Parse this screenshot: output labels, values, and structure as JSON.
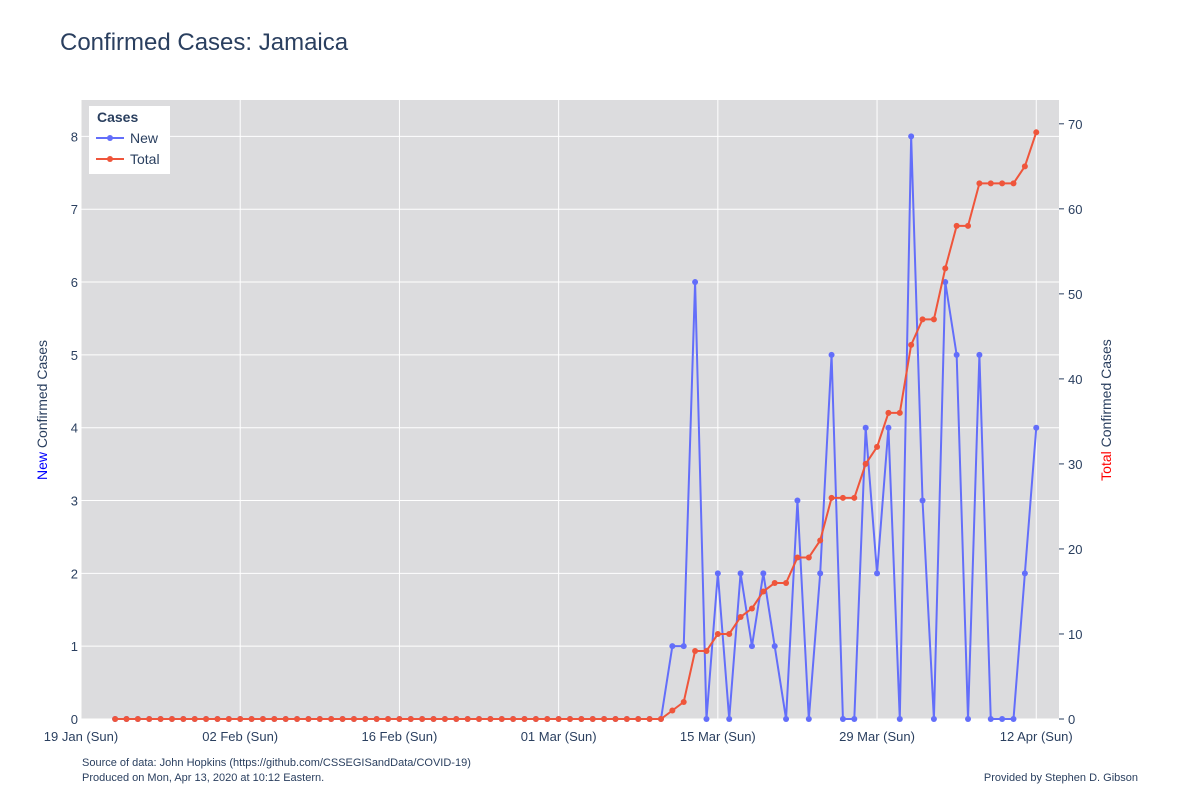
{
  "chart_data": {
    "type": "line",
    "title": "Confirmed Cases: Jamaica",
    "x_start_date": "2020-01-22",
    "x_end_date": "2020-04-12",
    "x_range": [
      "2020-01-19",
      "2020-04-14"
    ],
    "x_ticks": [
      {
        "date": "2020-01-19",
        "label": "19 Jan (Sun)"
      },
      {
        "date": "2020-02-02",
        "label": "02 Feb (Sun)"
      },
      {
        "date": "2020-02-16",
        "label": "16 Feb (Sun)"
      },
      {
        "date": "2020-03-01",
        "label": "01 Mar (Sun)"
      },
      {
        "date": "2020-03-15",
        "label": "15 Mar (Sun)"
      },
      {
        "date": "2020-03-29",
        "label": "29 Mar (Sun)"
      },
      {
        "date": "2020-04-12",
        "label": "12 Apr (Sun)"
      }
    ],
    "y_left": {
      "label_prefix": "New",
      "label_rest": " Confirmed Cases",
      "range": [
        0,
        8.5
      ],
      "ticks": [
        0,
        1,
        2,
        3,
        4,
        5,
        6,
        7,
        8
      ],
      "prefix_color": "#0000ff"
    },
    "y_right": {
      "label_prefix": "Total",
      "label_rest": " Confirmed Cases",
      "range": [
        0,
        72.8
      ],
      "ticks": [
        0,
        10,
        20,
        30,
        40,
        50,
        60,
        70
      ],
      "prefix_color": "#ff0000"
    },
    "legend": {
      "title": "Cases",
      "position": "top-left"
    },
    "grid": true,
    "series": [
      {
        "name": "New",
        "axis": "left",
        "color": "#636efa",
        "values": [
          0,
          0,
          0,
          0,
          0,
          0,
          0,
          0,
          0,
          0,
          0,
          0,
          0,
          0,
          0,
          0,
          0,
          0,
          0,
          0,
          0,
          0,
          0,
          0,
          0,
          0,
          0,
          0,
          0,
          0,
          0,
          0,
          0,
          0,
          0,
          0,
          0,
          0,
          0,
          0,
          0,
          0,
          0,
          0,
          0,
          0,
          0,
          0,
          0,
          1,
          1,
          6,
          0,
          2,
          0,
          2,
          1,
          2,
          1,
          0,
          3,
          0,
          2,
          5,
          0,
          0,
          4,
          2,
          4,
          0,
          8,
          3,
          0,
          6,
          5,
          0,
          5,
          0,
          0,
          0,
          2,
          4
        ]
      },
      {
        "name": "Total",
        "axis": "right",
        "color": "#ef553b",
        "values": [
          0,
          0,
          0,
          0,
          0,
          0,
          0,
          0,
          0,
          0,
          0,
          0,
          0,
          0,
          0,
          0,
          0,
          0,
          0,
          0,
          0,
          0,
          0,
          0,
          0,
          0,
          0,
          0,
          0,
          0,
          0,
          0,
          0,
          0,
          0,
          0,
          0,
          0,
          0,
          0,
          0,
          0,
          0,
          0,
          0,
          0,
          0,
          0,
          0,
          1,
          2,
          8,
          8,
          10,
          10,
          12,
          13,
          15,
          16,
          16,
          19,
          19,
          21,
          26,
          26,
          26,
          30,
          32,
          36,
          36,
          44,
          47,
          47,
          53,
          58,
          58,
          63,
          63,
          63,
          63,
          65,
          69
        ]
      }
    ]
  },
  "footer": {
    "source": "Source of data: John Hopkins (https://github.com/CSSEGISandData/COVID-19)",
    "produced": "Produced on Mon, Apr 13, 2020 at 10:12 Eastern.",
    "provided_by": "Provided by Stephen D. Gibson"
  },
  "colors": {
    "plot_bg": "#dcdcde",
    "grid": "#ffffff",
    "text": "#2a3f5f"
  }
}
